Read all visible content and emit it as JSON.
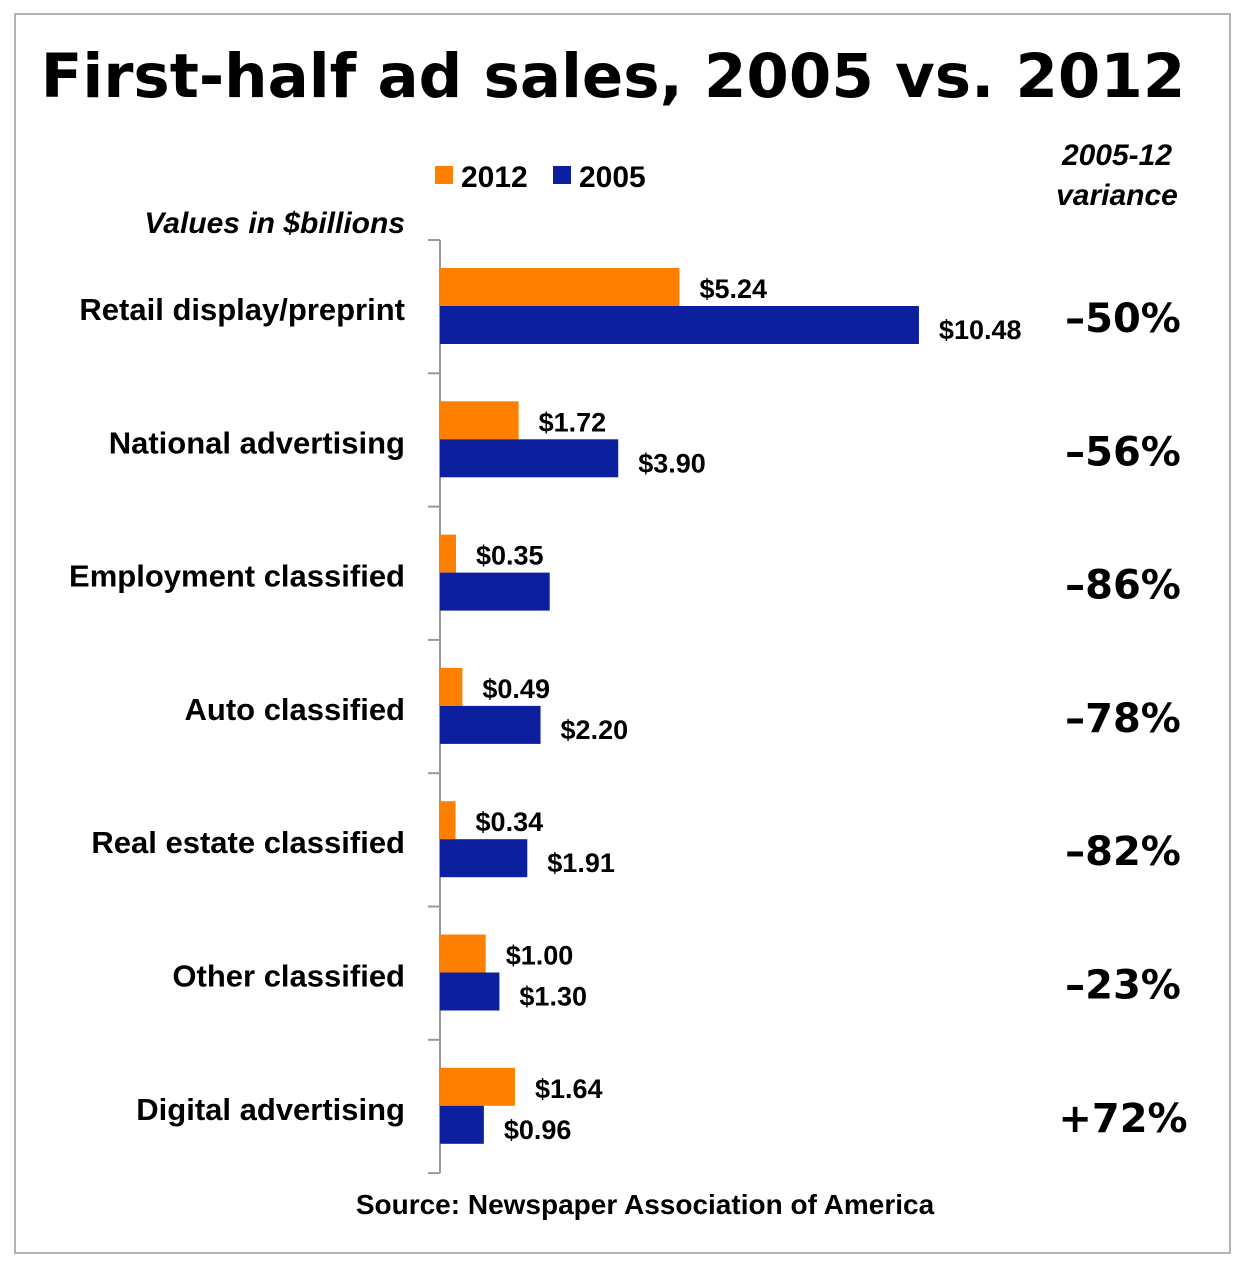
{
  "chart_data": {
    "type": "bar",
    "orientation": "horizontal",
    "title": "First-half ad sales, 2005 vs. 2012",
    "units_note": "Values in $billions",
    "variance_header": [
      "2005-12",
      "variance"
    ],
    "source": "Source: Newspaper Association of America",
    "categories": [
      "Retail display/preprint",
      "National advertising",
      "Employment classified",
      "Auto classified",
      "Real estate classified",
      "Other classified",
      "Digital advertising"
    ],
    "series": [
      {
        "name": "2012",
        "color": "#ff8000",
        "values": [
          5.24,
          1.72,
          0.35,
          0.49,
          0.34,
          1.0,
          1.64
        ],
        "labels": [
          "$5.24",
          "$1.72",
          "$0.35",
          "$0.49",
          "$0.34",
          "$1.00",
          "$1.64"
        ]
      },
      {
        "name": "2005",
        "color": "#0c1f9e",
        "values": [
          10.48,
          3.9,
          2.4,
          2.2,
          1.91,
          1.3,
          0.96
        ],
        "labels": [
          "$10.48",
          "$3.90",
          "",
          "$2.20",
          "$1.91",
          "$1.30",
          "$0.96"
        ]
      }
    ],
    "variance": [
      "–50%",
      "–56%",
      "–86%",
      "–78%",
      "–82%",
      "–23%",
      "+72%"
    ],
    "xlim": [
      0,
      12
    ],
    "legend_position": "top",
    "grid": false
  }
}
